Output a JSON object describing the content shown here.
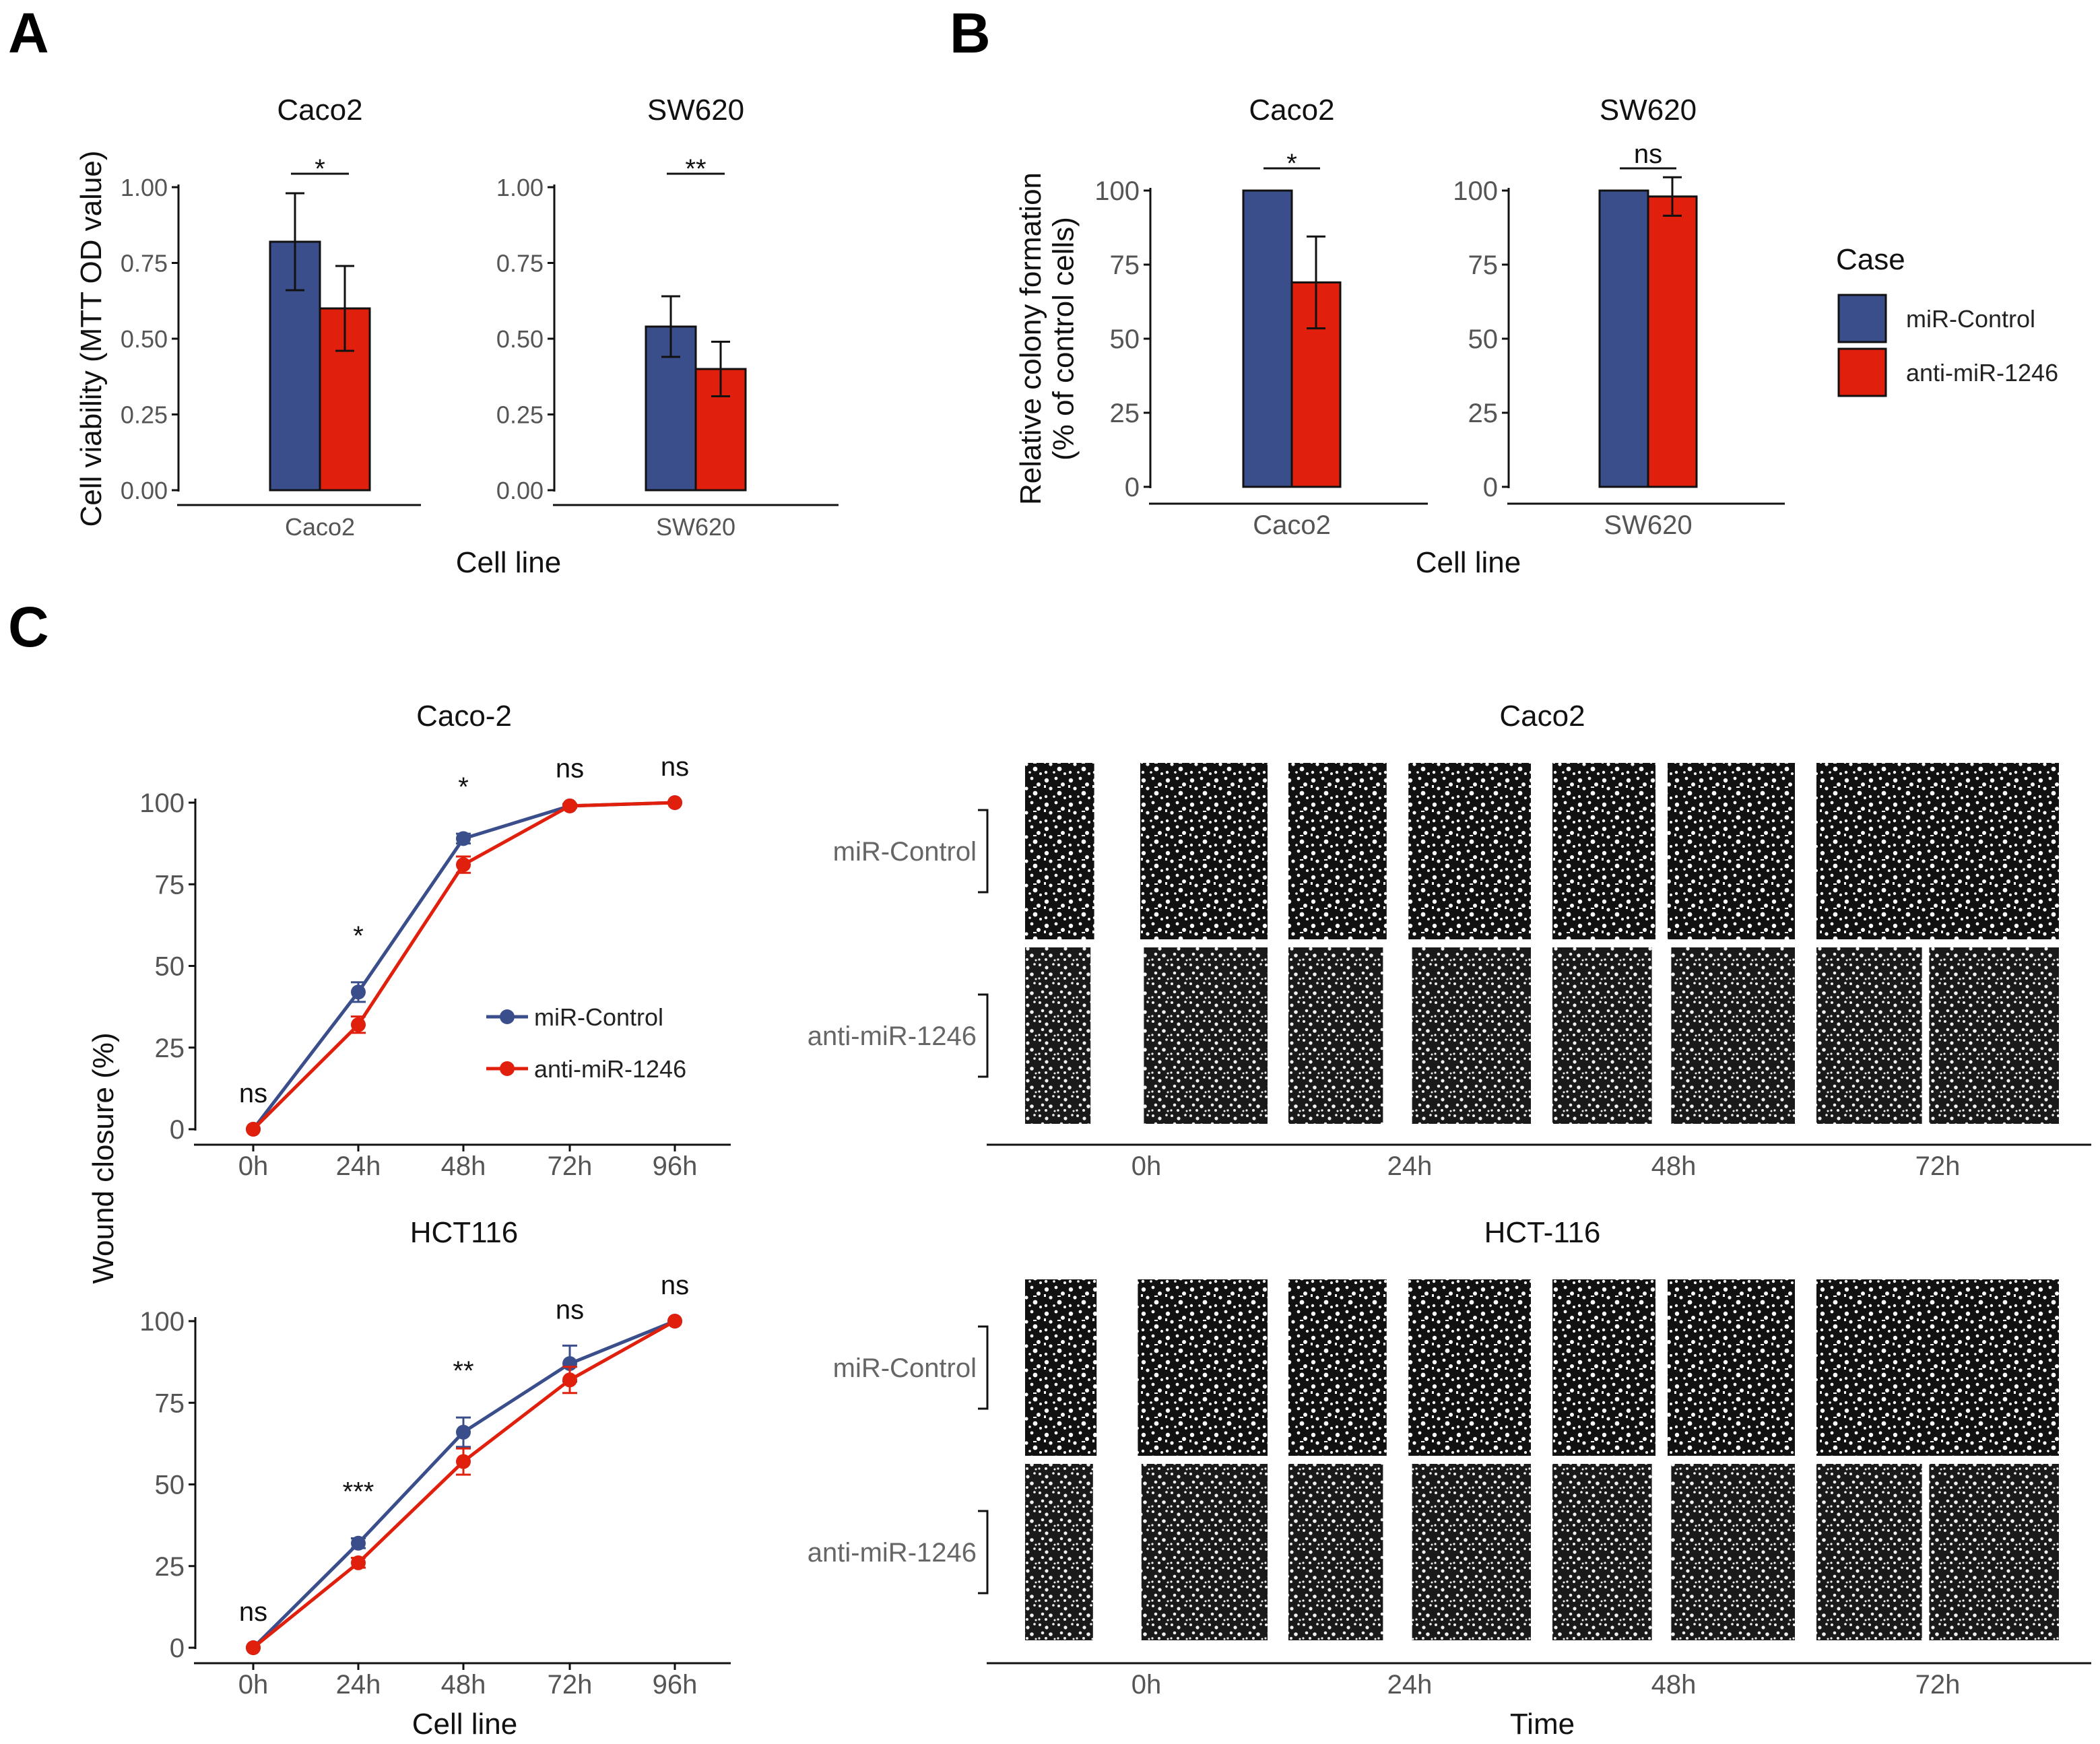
{
  "colors": {
    "control": "#3B4E8C",
    "anti": "#E0200C",
    "axis": "#111111",
    "tick": "#555555"
  },
  "panels": {
    "a": "A",
    "b": "B",
    "c": "C"
  },
  "case_legend": {
    "title": "Case",
    "items": [
      "miR-Control",
      "anti-miR-1246"
    ]
  },
  "line_legend": {
    "items": [
      "miR-Control",
      "anti-miR-1246"
    ]
  },
  "micrographs": {
    "caco2": {
      "title": "Caco2",
      "rows": [
        "miR-Control",
        "anti-miR-1246"
      ],
      "times": [
        "0h",
        "24h",
        "48h",
        "72h"
      ],
      "xlabel": ""
    },
    "hct116": {
      "title": "HCT-116",
      "rows": [
        "miR-Control",
        "anti-miR-1246"
      ],
      "times": [
        "0h",
        "24h",
        "48h",
        "72h"
      ],
      "xlabel": "Time"
    },
    "gap_fraction": {
      "caco2": [
        0.19,
        0.09,
        0.05,
        0.0
      ],
      "hct116": [
        0.17,
        0.09,
        0.05,
        0.0
      ]
    }
  },
  "chart_data": [
    {
      "id": "A1",
      "type": "bar",
      "title": "Caco2",
      "categories": [
        "Caco2"
      ],
      "xlabel": "Cell line",
      "ylabel": "Cell viability (MTT OD value)",
      "ylim": [
        0,
        1.0
      ],
      "yticks": [
        "0.00",
        "0.25",
        "0.50",
        "0.75",
        "1.00"
      ],
      "series": [
        {
          "name": "miR-Control",
          "values": [
            0.82
          ],
          "errors": [
            0.16
          ]
        },
        {
          "name": "anti-miR-1246",
          "values": [
            0.6
          ],
          "errors": [
            0.14
          ]
        }
      ],
      "significance": "*"
    },
    {
      "id": "A2",
      "type": "bar",
      "title": "SW620",
      "categories": [
        "SW620"
      ],
      "xlabel": "Cell line",
      "ylabel": "",
      "ylim": [
        0,
        1.0
      ],
      "yticks": [
        "0.00",
        "0.25",
        "0.50",
        "0.75",
        "1.00"
      ],
      "series": [
        {
          "name": "miR-Control",
          "values": [
            0.54
          ],
          "errors": [
            0.1
          ]
        },
        {
          "name": "anti-miR-1246",
          "values": [
            0.4
          ],
          "errors": [
            0.09
          ]
        }
      ],
      "significance": "**"
    },
    {
      "id": "B1",
      "type": "bar",
      "title": "Caco2",
      "categories": [
        "Caco2"
      ],
      "xlabel": "Cell line",
      "ylabel": "Relative colony formation\n(% of control cells)",
      "ylim": [
        0,
        100
      ],
      "yticks": [
        "0",
        "25",
        "50",
        "75",
        "100"
      ],
      "series": [
        {
          "name": "miR-Control",
          "values": [
            100
          ],
          "errors": [
            0
          ]
        },
        {
          "name": "anti-miR-1246",
          "values": [
            69
          ],
          "errors": [
            15.5
          ]
        }
      ],
      "significance": "*"
    },
    {
      "id": "B2",
      "type": "bar",
      "title": "SW620",
      "categories": [
        "SW620"
      ],
      "xlabel": "Cell line",
      "ylabel": "",
      "ylim": [
        0,
        100
      ],
      "yticks": [
        "0",
        "25",
        "50",
        "75",
        "100"
      ],
      "series": [
        {
          "name": "miR-Control",
          "values": [
            100
          ],
          "errors": [
            0
          ]
        },
        {
          "name": "anti-miR-1246",
          "values": [
            98
          ],
          "errors": [
            6.5
          ]
        }
      ],
      "significance": "ns"
    },
    {
      "id": "C1",
      "type": "line",
      "title": "Caco-2",
      "x": [
        "0h",
        "24h",
        "48h",
        "72h",
        "96h"
      ],
      "xlabel": "",
      "ylabel": "Wound closure (%)",
      "ylim": [
        0,
        100
      ],
      "yticks": [
        "0",
        "25",
        "50",
        "75",
        "100"
      ],
      "series": [
        {
          "name": "miR-Control",
          "values": [
            0,
            42,
            89,
            99,
            100
          ],
          "errors": [
            0,
            3,
            1.5,
            0.5,
            0
          ]
        },
        {
          "name": "anti-miR-1246",
          "values": [
            0,
            32,
            81,
            99,
            100
          ],
          "errors": [
            0,
            2.5,
            2.5,
            0.5,
            0
          ]
        }
      ],
      "significance": [
        "ns",
        "*",
        "*",
        "ns",
        "ns"
      ]
    },
    {
      "id": "C2",
      "type": "line",
      "title": "HCT116",
      "x": [
        "0h",
        "24h",
        "48h",
        "72h",
        "96h"
      ],
      "xlabel": "Cell line",
      "ylabel": "",
      "ylim": [
        0,
        100
      ],
      "yticks": [
        "0",
        "25",
        "50",
        "75",
        "100"
      ],
      "series": [
        {
          "name": "miR-Control",
          "values": [
            0,
            32,
            66,
            87,
            100
          ],
          "errors": [
            0,
            1.5,
            4.5,
            5.5,
            0
          ]
        },
        {
          "name": "anti-miR-1246",
          "values": [
            0,
            26,
            57,
            82,
            100
          ],
          "errors": [
            0,
            1.5,
            4,
            4,
            0
          ]
        }
      ],
      "significance": [
        "ns",
        "***",
        "**",
        "ns",
        "ns"
      ]
    }
  ]
}
